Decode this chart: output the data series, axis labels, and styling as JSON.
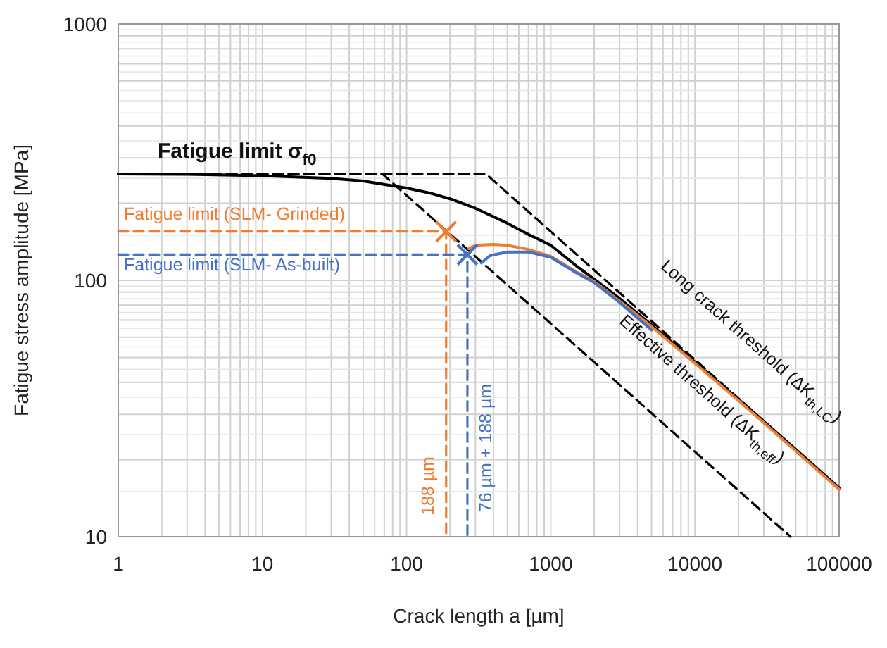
{
  "chart_data": {
    "type": "line",
    "xlabel": "Crack length a [µm]",
    "ylabel": "Fatigue stress amplitude [MPa]",
    "log": "xy",
    "xlim": [
      1,
      100000
    ],
    "ylim": [
      10,
      1000
    ],
    "xticks": [
      1,
      10,
      100,
      1000,
      10000,
      100000
    ],
    "yticks": [
      10,
      100,
      1000
    ],
    "grid": true,
    "series": [
      {
        "color": "#000000",
        "line_style": "dashed",
        "x": [
          1,
          355,
          100000
        ],
        "values": [
          260,
          260,
          15.5
        ]
      },
      {
        "color": "#000000",
        "line_style": "dashed",
        "x": [
          1,
          68,
          46000
        ],
        "values": [
          260,
          260,
          10
        ]
      },
      {
        "color": "#ed7d31",
        "line_style": "dashed",
        "x": [
          1,
          188,
          188
        ],
        "values": [
          155,
          155,
          10
        ]
      },
      {
        "color": "#4472c4",
        "line_style": "dashed",
        "x": [
          1,
          264,
          264
        ],
        "values": [
          126,
          126,
          10
        ]
      },
      {
        "color": "#000000",
        "line_style": "solid",
        "x": [
          1,
          3,
          10,
          30,
          50,
          100,
          150,
          200,
          300,
          500,
          700,
          1000,
          1500,
          2000,
          3000,
          5000,
          10000,
          20000,
          50000,
          100000
        ],
        "values": [
          260,
          259,
          256,
          250,
          244,
          229,
          218,
          208,
          191,
          167,
          151,
          137,
          114,
          101,
          85,
          67,
          48,
          34.4,
          21.9,
          15.5
        ]
      },
      {
        "color": "#ed7d31",
        "line_style": "solid",
        "x": [
          270,
          300,
          400,
          500,
          700,
          1000,
          1500,
          2000,
          3000,
          5000,
          10000,
          20000,
          50000,
          100000
        ],
        "values": [
          133,
          137,
          138,
          137,
          132,
          124,
          108,
          99,
          83,
          66,
          47.5,
          34,
          21.6,
          15.3
        ]
      },
      {
        "color": "#4472c4",
        "line_style": "solid",
        "x": [
          330,
          380,
          500,
          700,
          1000,
          1500,
          2000,
          3000,
          5000
        ],
        "values": [
          117,
          125,
          129,
          129,
          123,
          107,
          98,
          82,
          64
        ]
      },
      {
        "type": "scatter",
        "color": "#ed7d31",
        "marker": "cross",
        "x": [
          188
        ],
        "values": [
          155
        ]
      },
      {
        "type": "scatter",
        "color": "#4472c4",
        "marker": "cross",
        "x": [
          264
        ],
        "values": [
          126
        ]
      }
    ],
    "annotations": [
      "Fatigue limit σ$_{f0}$",
      "Fatigue limit (SLM- Grinded)",
      "Fatigue limit (SLM- As-built)",
      "188 µm",
      "76 µm + 188 µm",
      "Long crack threshold (ΔK$_{th,LC}$)",
      "Effective threshold (ΔK$_{th,eff}$)"
    ]
  }
}
